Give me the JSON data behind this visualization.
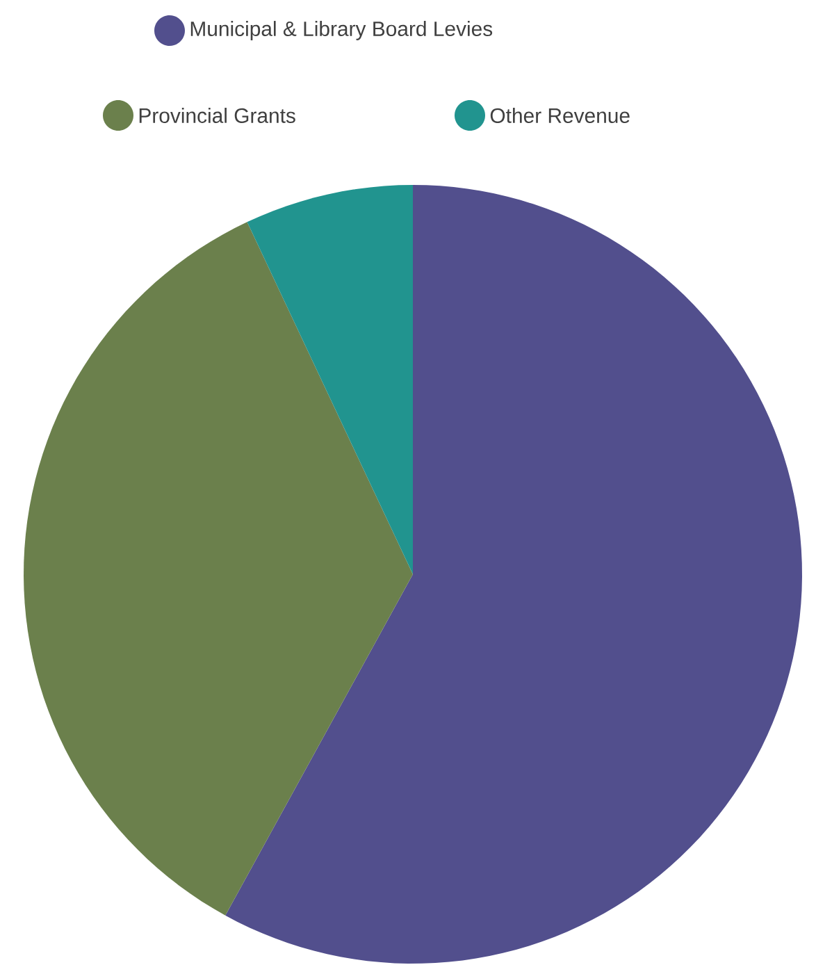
{
  "chart_data": {
    "type": "pie",
    "categories": [
      "Municipal & Library Board Levies",
      "Provincial Grants",
      "Other Revenue"
    ],
    "values": [
      58,
      35,
      7
    ],
    "colors": [
      "#524f8d",
      "#6b804c",
      "#21948f"
    ],
    "legend": "top"
  }
}
